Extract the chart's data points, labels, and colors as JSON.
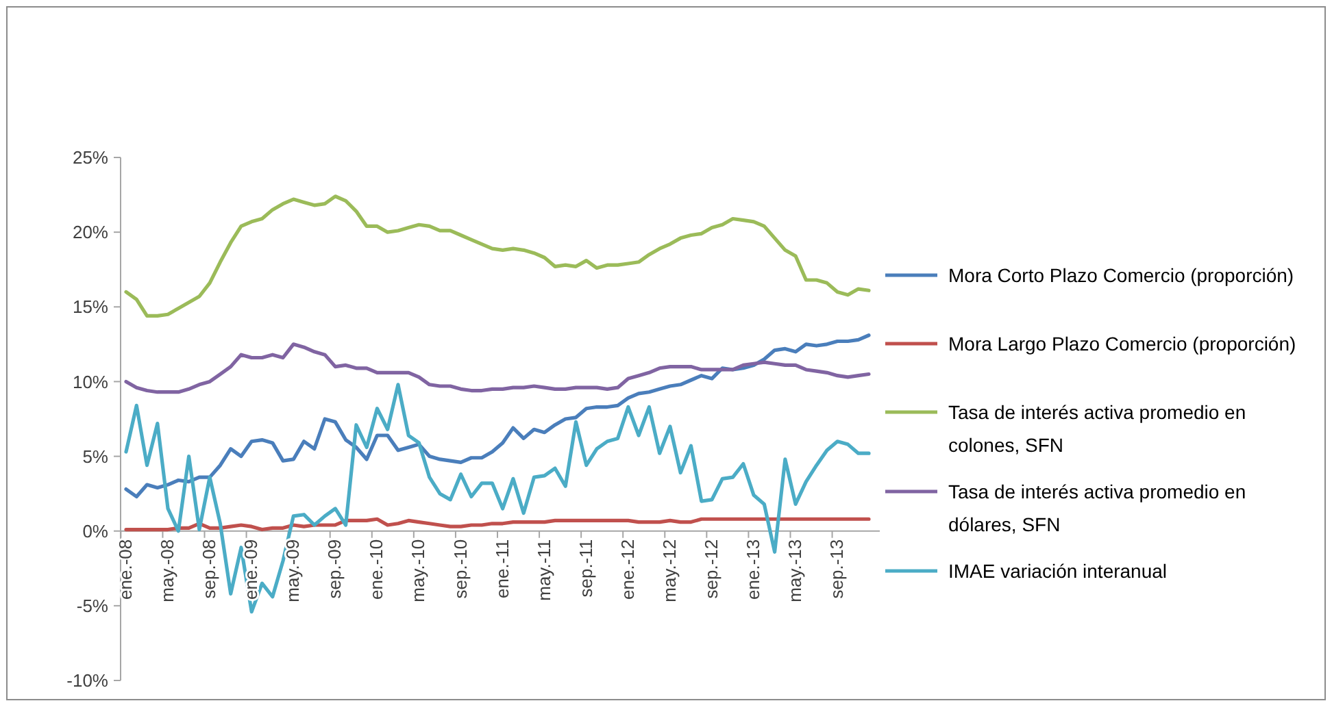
{
  "chart_data": {
    "type": "line",
    "categories": [
      "ene.-08",
      null,
      null,
      null,
      "may.-08",
      null,
      null,
      null,
      "sep.-08",
      null,
      null,
      null,
      "ene.-09",
      null,
      null,
      null,
      "may.-09",
      null,
      null,
      null,
      "sep.-09",
      null,
      null,
      null,
      "ene.-10",
      null,
      null,
      null,
      "may.-10",
      null,
      null,
      null,
      "sep.-10",
      null,
      null,
      null,
      "ene.-11",
      null,
      null,
      null,
      "may.-11",
      null,
      null,
      null,
      "sep.-11",
      null,
      null,
      null,
      "ene.-12",
      null,
      null,
      null,
      "may.-12",
      null,
      null,
      null,
      "sep.-12",
      null,
      null,
      null,
      "ene.-13",
      null,
      null,
      null,
      "may.-13",
      null,
      null,
      null,
      "sep.-13",
      null,
      null,
      null
    ],
    "series": [
      {
        "name": "Mora Corto Plazo Comercio (proporción)",
        "color": "#4a7ebb",
        "values": [
          2.8,
          2.3,
          3.1,
          2.9,
          3.1,
          3.4,
          3.3,
          3.6,
          3.6,
          4.4,
          5.5,
          5.0,
          6.0,
          6.1,
          5.9,
          4.7,
          4.8,
          6.0,
          5.5,
          7.5,
          7.3,
          6.1,
          5.6,
          4.8,
          6.4,
          6.4,
          5.4,
          5.6,
          5.8,
          5.0,
          4.8,
          4.7,
          4.6,
          4.9,
          4.9,
          5.3,
          5.9,
          6.9,
          6.2,
          6.8,
          6.6,
          7.1,
          7.5,
          7.6,
          8.2,
          8.3,
          8.3,
          8.4,
          8.9,
          9.2,
          9.3,
          9.5,
          9.7,
          9.8,
          10.1,
          10.4,
          10.2,
          10.9,
          10.8,
          10.9,
          11.1,
          11.5,
          12.1,
          12.2,
          12.0,
          12.5,
          12.4,
          12.5,
          12.7,
          12.7,
          12.8,
          13.1
        ]
      },
      {
        "name": "Mora Largo Plazo Comercio (proporción)",
        "color": "#c0504d",
        "values": [
          0.1,
          0.1,
          0.1,
          0.1,
          0.1,
          0.2,
          0.2,
          0.5,
          0.2,
          0.2,
          0.3,
          0.4,
          0.3,
          0.1,
          0.2,
          0.2,
          0.4,
          0.3,
          0.4,
          0.4,
          0.4,
          0.7,
          0.7,
          0.7,
          0.8,
          0.4,
          0.5,
          0.7,
          0.6,
          0.5,
          0.4,
          0.3,
          0.3,
          0.4,
          0.4,
          0.5,
          0.5,
          0.6,
          0.6,
          0.6,
          0.6,
          0.7,
          0.7,
          0.7,
          0.7,
          0.7,
          0.7,
          0.7,
          0.7,
          0.6,
          0.6,
          0.6,
          0.7,
          0.6,
          0.6,
          0.8,
          0.8,
          0.8,
          0.8,
          0.8,
          0.8,
          0.8,
          0.8,
          0.8,
          0.8,
          0.8,
          0.8,
          0.8,
          0.8,
          0.8,
          0.8,
          0.8
        ]
      },
      {
        "name": "Tasa de interés activa promedio en colones, SFN",
        "color": "#9bbb59",
        "values": [
          16.0,
          15.5,
          14.4,
          14.4,
          14.5,
          14.9,
          15.3,
          15.7,
          16.6,
          18.0,
          19.3,
          20.4,
          20.7,
          20.9,
          21.5,
          21.9,
          22.2,
          22.0,
          21.8,
          21.9,
          22.4,
          22.1,
          21.4,
          20.4,
          20.4,
          20.0,
          20.1,
          20.3,
          20.5,
          20.4,
          20.1,
          20.1,
          19.8,
          19.5,
          19.2,
          18.9,
          18.8,
          18.9,
          18.8,
          18.6,
          18.3,
          17.7,
          17.8,
          17.7,
          18.1,
          17.6,
          17.8,
          17.8,
          17.9,
          18.0,
          18.5,
          18.9,
          19.2,
          19.6,
          19.8,
          19.9,
          20.3,
          20.5,
          20.9,
          20.8,
          20.7,
          20.4,
          19.6,
          18.8,
          18.4,
          16.8,
          16.8,
          16.6,
          16.0,
          15.8,
          16.2,
          16.1
        ]
      },
      {
        "name": "Tasa de interés activa promedio en dólares, SFN",
        "color": "#8064a2",
        "values": [
          10.0,
          9.6,
          9.4,
          9.3,
          9.3,
          9.3,
          9.5,
          9.8,
          10.0,
          10.5,
          11.0,
          11.8,
          11.6,
          11.6,
          11.8,
          11.6,
          12.5,
          12.3,
          12.0,
          11.8,
          11.0,
          11.1,
          10.9,
          10.9,
          10.6,
          10.6,
          10.6,
          10.6,
          10.3,
          9.8,
          9.7,
          9.7,
          9.5,
          9.4,
          9.4,
          9.5,
          9.5,
          9.6,
          9.6,
          9.7,
          9.6,
          9.5,
          9.5,
          9.6,
          9.6,
          9.6,
          9.5,
          9.6,
          10.2,
          10.4,
          10.6,
          10.9,
          11.0,
          11.0,
          11.0,
          10.8,
          10.8,
          10.8,
          10.8,
          11.1,
          11.2,
          11.3,
          11.2,
          11.1,
          11.1,
          10.8,
          10.7,
          10.6,
          10.4,
          10.3,
          10.4,
          10.5
        ]
      },
      {
        "name": "IMAE variación interanual",
        "color": "#4bacc6",
        "values": [
          5.3,
          8.4,
          4.4,
          7.2,
          1.5,
          0.0,
          5.0,
          0.1,
          3.6,
          0.5,
          -4.2,
          -1.1,
          -5.4,
          -3.5,
          -4.4,
          -2.0,
          1.0,
          1.1,
          0.4,
          1.0,
          1.5,
          0.4,
          7.1,
          5.6,
          8.2,
          6.8,
          9.8,
          6.4,
          5.9,
          3.6,
          2.5,
          2.1,
          3.8,
          2.3,
          3.2,
          3.2,
          1.5,
          3.5,
          1.2,
          3.6,
          3.7,
          4.2,
          3.0,
          7.3,
          4.4,
          5.5,
          6.0,
          6.2,
          8.3,
          6.4,
          8.3,
          5.2,
          7.0,
          3.9,
          5.7,
          2.0,
          2.1,
          3.5,
          3.6,
          4.5,
          2.4,
          1.8,
          -1.4,
          4.8,
          1.8,
          3.3,
          4.4,
          5.4,
          6.0,
          5.8,
          5.2,
          5.2
        ]
      }
    ],
    "ylim": [
      -10,
      25
    ],
    "yticks": [
      {
        "value": -10,
        "label": "-10%"
      },
      {
        "value": -5,
        "label": "-5%"
      },
      {
        "value": 0,
        "label": "0%"
      },
      {
        "value": 5,
        "label": "5%"
      },
      {
        "value": 10,
        "label": "10%"
      },
      {
        "value": 15,
        "label": "15%"
      },
      {
        "value": 20,
        "label": "20%"
      },
      {
        "value": 25,
        "label": "25%"
      }
    ],
    "grid": false,
    "legend": "right",
    "marker": "none",
    "line_style": "solid"
  }
}
